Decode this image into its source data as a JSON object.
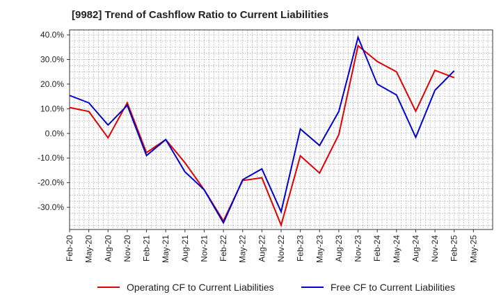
{
  "chart_data": {
    "type": "line",
    "title": "[9982]  Trend of Cashflow Ratio to Current Liabilities",
    "xlabel": "",
    "ylabel": "",
    "ylim": [
      -39,
      42
    ],
    "y_ticks": [
      "40.0%",
      "30.0%",
      "20.0%",
      "10.0%",
      "0.0%",
      "-10.0%",
      "-20.0%",
      "-30.0%"
    ],
    "y_tick_values": [
      40,
      30,
      20,
      10,
      0,
      -10,
      -20,
      -30
    ],
    "x_tick_labels": [
      "Feb-20",
      "May-20",
      "Aug-20",
      "Nov-20",
      "Feb-21",
      "May-21",
      "Aug-21",
      "Nov-21",
      "Feb-22",
      "May-22",
      "Aug-22",
      "Nov-22",
      "Feb-23",
      "May-23",
      "Aug-23",
      "Nov-23",
      "Feb-24",
      "May-24",
      "Aug-24",
      "Nov-24",
      "Feb-25",
      "May-25"
    ],
    "x": [
      "Feb-20",
      "May-20",
      "Aug-20",
      "Nov-20",
      "Feb-21",
      "May-21",
      "Aug-21",
      "Nov-21",
      "Feb-22",
      "May-22",
      "Aug-22",
      "Nov-22",
      "Feb-23",
      "May-23",
      "Aug-23",
      "Nov-23",
      "Feb-24",
      "May-24",
      "Aug-24",
      "Nov-24",
      "Feb-25"
    ],
    "grid": true,
    "legend_position": "bottom",
    "series": [
      {
        "name": "Operating CF to Current Liabilities",
        "color": "#dd0000",
        "values": [
          10.5,
          8.9,
          -1.8,
          12.4,
          -7.8,
          -2.5,
          -11.9,
          -22.9,
          -35.5,
          -19.1,
          -18.0,
          -37.2,
          -9.1,
          -16.1,
          -0.5,
          35.6,
          29.2,
          25.0,
          9.0,
          25.6,
          22.6
        ]
      },
      {
        "name": "Free CF to Current Liabilities",
        "color": "#0000cc",
        "values": [
          15.4,
          12.4,
          3.4,
          11.4,
          -9.0,
          -2.5,
          -15.6,
          -22.9,
          -36.3,
          -18.8,
          -14.4,
          -31.8,
          1.8,
          -4.9,
          8.9,
          39.0,
          20.0,
          15.6,
          -1.6,
          17.5,
          25.4
        ]
      }
    ]
  }
}
